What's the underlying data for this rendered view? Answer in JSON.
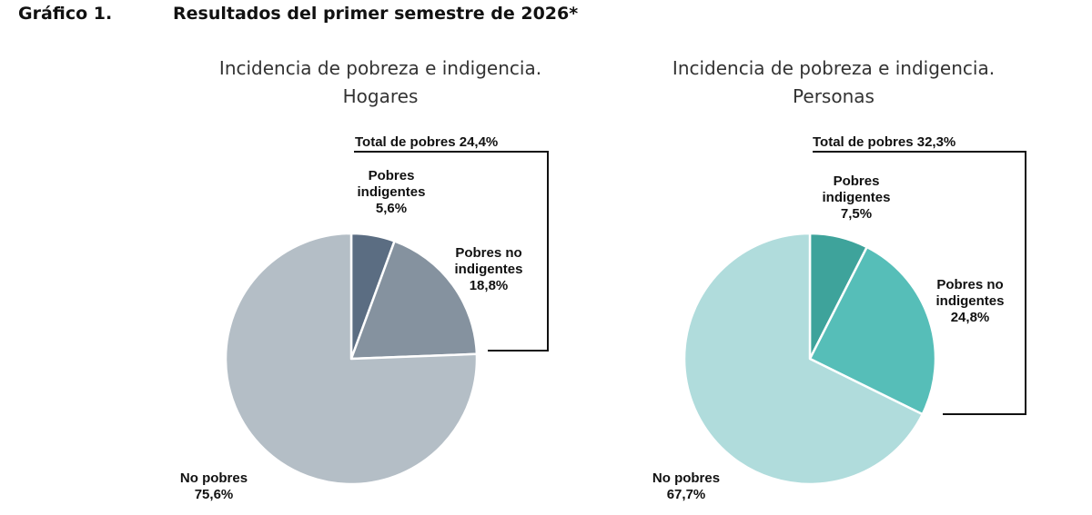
{
  "header": {
    "figure_label": "Gráfico 1.",
    "figure_title": "Resultados del primer semestre de 2026*"
  },
  "chart_data": [
    {
      "type": "pie",
      "title_line1": "Incidencia de pobreza e indigencia.",
      "title_line2": "Hogares",
      "total_label": "Total de pobres 24,4%",
      "slices": [
        {
          "name_lines": [
            "Pobres",
            "indigentes"
          ],
          "value": 5.6,
          "value_label": "5,6%",
          "color": "#5b6d82"
        },
        {
          "name_lines": [
            "Pobres no",
            "indigentes"
          ],
          "value": 18.8,
          "value_label": "18,8%",
          "color": "#85929f"
        },
        {
          "name_lines": [
            "No pobres"
          ],
          "value": 75.6,
          "value_label": "75,6%",
          "color": "#b4bec6"
        }
      ]
    },
    {
      "type": "pie",
      "title_line1": "Incidencia de pobreza e indigencia.",
      "title_line2": "Personas",
      "total_label": "Total de pobres 32,3%",
      "slices": [
        {
          "name_lines": [
            "Pobres",
            "indigentes"
          ],
          "value": 7.5,
          "value_label": "7,5%",
          "color": "#3ea39b"
        },
        {
          "name_lines": [
            "Pobres no",
            "indigentes"
          ],
          "value": 24.8,
          "value_label": "24,8%",
          "color": "#56beb8"
        },
        {
          "name_lines": [
            "No pobres"
          ],
          "value": 67.7,
          "value_label": "67,7%",
          "color": "#b0dcdc"
        }
      ]
    }
  ]
}
